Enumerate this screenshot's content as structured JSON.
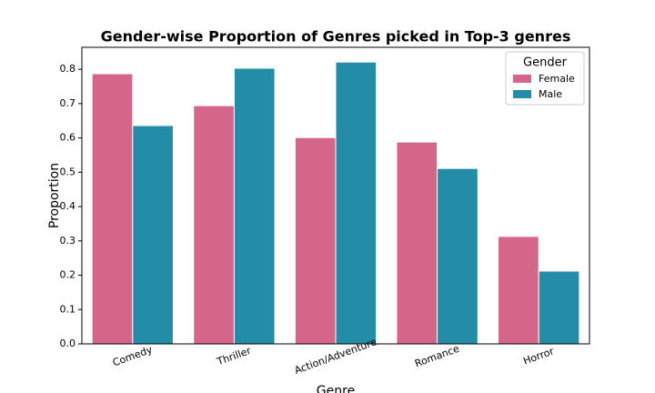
{
  "chart_data": {
    "type": "grouped-bar",
    "title": "Gender-wise Proportion of Genres picked in Top-3 genres",
    "x_label": "Genre",
    "y_label": "Proportion",
    "categories": [
      "Comedy",
      "Thriller",
      "Action/Adventure",
      "Romance",
      "Horror"
    ],
    "series": [
      {
        "name": "Female",
        "color": "#d6658a",
        "values": [
          0.787,
          0.694,
          0.601,
          0.588,
          0.313
        ]
      },
      {
        "name": "Male",
        "color": "#238ca6",
        "values": [
          0.636,
          0.803,
          0.821,
          0.511,
          0.212
        ]
      }
    ],
    "ylim": [
      0,
      0.864
    ],
    "yticks": [
      {
        "value": 0,
        "label": "0.0"
      },
      0.1,
      0.2,
      0.3,
      0.4,
      0.5,
      0.6,
      0.7,
      0.8
    ],
    "legend_title": "Gender",
    "legend_position": "upper right",
    "grid": false
  }
}
